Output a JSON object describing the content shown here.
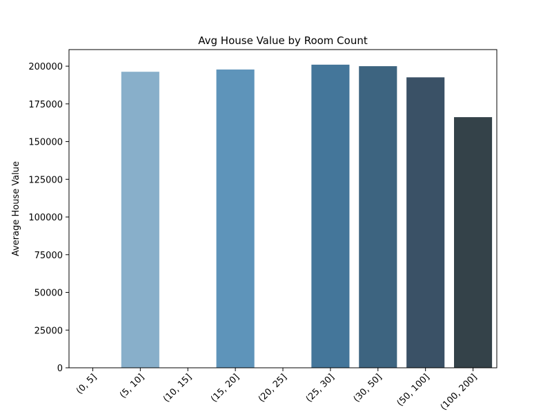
{
  "chart_data": {
    "type": "bar",
    "title": "Avg House Value by Room Count",
    "xlabel": "",
    "ylabel": "Average House Value",
    "categories": [
      "(0, 5]",
      "(5, 10]",
      "(10, 15]",
      "(15, 20]",
      "(20, 25]",
      "(25, 30]",
      "(30, 50]",
      "(50, 100]",
      "(100, 200]"
    ],
    "values": [
      null,
      196300,
      null,
      197800,
      null,
      201000,
      200000,
      192600,
      166200
    ],
    "colors": [
      "#8fb5cf",
      "#88afca",
      "#78a6c6",
      "#5e94ba",
      "#4f86b0",
      "#44769a",
      "#3d6480",
      "#3a5166",
      "#344249"
    ],
    "ylim": [
      0,
      211000
    ],
    "yticks": [
      0,
      25000,
      50000,
      75000,
      100000,
      125000,
      150000,
      175000,
      200000
    ],
    "grid": false,
    "legend": "none"
  }
}
